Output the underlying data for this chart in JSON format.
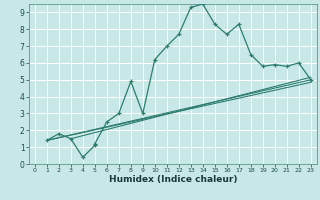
{
  "title": "",
  "xlabel": "Humidex (Indice chaleur)",
  "bg_color": "#c8e8e8",
  "grid_color": "#ffffff",
  "line_color": "#2e7d6e",
  "xlim": [
    -0.5,
    23.5
  ],
  "ylim": [
    0,
    9.5
  ],
  "xticks": [
    0,
    1,
    2,
    3,
    4,
    5,
    6,
    7,
    8,
    9,
    10,
    11,
    12,
    13,
    14,
    15,
    16,
    17,
    18,
    19,
    20,
    21,
    22,
    23
  ],
  "yticks": [
    0,
    1,
    2,
    3,
    4,
    5,
    6,
    7,
    8,
    9
  ],
  "curve1_x": [
    1,
    2,
    3,
    4,
    5,
    5,
    6,
    7,
    8,
    9,
    10,
    11,
    12,
    13,
    14,
    15,
    16,
    17,
    18,
    19,
    20,
    21,
    22,
    23
  ],
  "curve1_y": [
    1.4,
    1.8,
    1.5,
    0.4,
    1.1,
    1.2,
    2.5,
    3.0,
    4.9,
    3.0,
    6.2,
    7.0,
    7.7,
    9.3,
    9.5,
    8.3,
    7.7,
    8.3,
    6.5,
    5.8,
    5.9,
    5.8,
    6.0,
    5.0
  ],
  "line2_x": [
    1,
    23
  ],
  "line2_y": [
    1.4,
    5.0
  ],
  "line3_x": [
    1,
    23
  ],
  "line3_y": [
    1.4,
    4.85
  ],
  "line4_x": [
    3,
    23
  ],
  "line4_y": [
    1.5,
    5.15
  ]
}
